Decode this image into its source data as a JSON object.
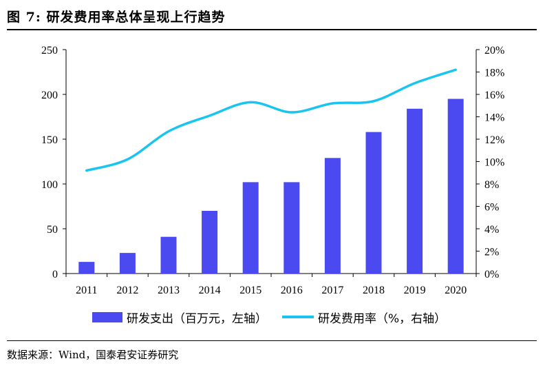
{
  "figure": {
    "title": "图  7: 研发费用率总体呈现上行趋势",
    "source": "数据来源：Wind，国泰君安证券研究"
  },
  "colors": {
    "bar": "#4a4af0",
    "line": "#18c5f0"
  },
  "legend": {
    "bar_label": "研发支出（百万元，左轴）",
    "line_label": "研发费用率（%，右轴）"
  },
  "chart_data": {
    "type": "bar",
    "categories": [
      "2011",
      "2012",
      "2013",
      "2014",
      "2015",
      "2016",
      "2017",
      "2018",
      "2019",
      "2020"
    ],
    "series": [
      {
        "name": "研发支出（百万元，左轴）",
        "type": "bar",
        "axis": "left",
        "values": [
          13,
          23,
          41,
          70,
          102,
          102,
          129,
          158,
          184,
          195
        ]
      },
      {
        "name": "研发费用率（%，右轴）",
        "type": "line",
        "axis": "right",
        "values": [
          9.2,
          10.2,
          12.7,
          14.1,
          15.3,
          14.4,
          15.2,
          15.4,
          17.0,
          18.2
        ]
      }
    ],
    "y_left": {
      "ylim": [
        0,
        250
      ],
      "ticks": [
        "0",
        "50",
        "100",
        "150",
        "200",
        "250"
      ]
    },
    "y_right": {
      "ylim": [
        0,
        20
      ],
      "ticks": [
        "0%",
        "2%",
        "4%",
        "6%",
        "8%",
        "10%",
        "12%",
        "14%",
        "16%",
        "18%",
        "20%"
      ]
    },
    "grid": false,
    "legend_position": "bottom"
  }
}
